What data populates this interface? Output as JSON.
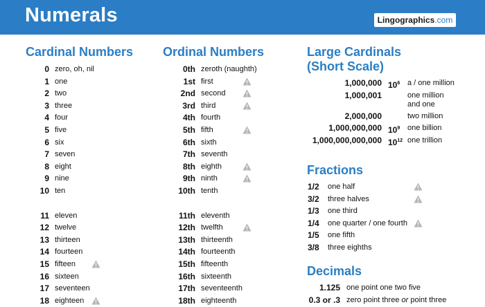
{
  "header": {
    "title": "Numerals",
    "logo_main": "Lingographics",
    "logo_dom": ".com"
  },
  "cardinal": {
    "heading": "Cardinal Numbers",
    "rows": [
      {
        "n": "0",
        "w": "zero, oh, nil"
      },
      {
        "n": "1",
        "w": "one"
      },
      {
        "n": "2",
        "w": "two"
      },
      {
        "n": "3",
        "w": "three"
      },
      {
        "n": "4",
        "w": "four"
      },
      {
        "n": "5",
        "w": "five"
      },
      {
        "n": "6",
        "w": "six"
      },
      {
        "n": "7",
        "w": "seven"
      },
      {
        "n": "8",
        "w": "eight"
      },
      {
        "n": "9",
        "w": "nine"
      },
      {
        "n": "10",
        "w": "ten"
      },
      {
        "n": "11",
        "w": "eleven"
      },
      {
        "n": "12",
        "w": "twelve"
      },
      {
        "n": "13",
        "w": "thirteen"
      },
      {
        "n": "14",
        "w": "fourteen"
      },
      {
        "n": "15",
        "w": "fifteen",
        "warn": true
      },
      {
        "n": "16",
        "w": "sixteen"
      },
      {
        "n": "17",
        "w": "seventeen"
      },
      {
        "n": "18",
        "w": "eighteen",
        "warn": true
      }
    ]
  },
  "ordinal": {
    "heading": "Ordinal Numbers",
    "rows": [
      {
        "n": "0th",
        "w": "zeroth (naughth)"
      },
      {
        "n": "1st",
        "w": "first",
        "warn": true
      },
      {
        "n": "2nd",
        "w": "second",
        "warn": true
      },
      {
        "n": "3rd",
        "w": "third",
        "warn": true
      },
      {
        "n": "4th",
        "w": "fourth"
      },
      {
        "n": "5th",
        "w": "fifth",
        "warn": true
      },
      {
        "n": "6th",
        "w": "sixth"
      },
      {
        "n": "7th",
        "w": "seventh"
      },
      {
        "n": "8th",
        "w": "eighth",
        "warn": true
      },
      {
        "n": "9th",
        "w": "ninth",
        "warn": true
      },
      {
        "n": "10th",
        "w": "tenth"
      },
      {
        "n": "11th",
        "w": "eleventh"
      },
      {
        "n": "12th",
        "w": "twelfth",
        "warn": true
      },
      {
        "n": "13th",
        "w": "thirteenth"
      },
      {
        "n": "14th",
        "w": "fourteenth"
      },
      {
        "n": "15th",
        "w": "fifteenth"
      },
      {
        "n": "16th",
        "w": "sixteenth"
      },
      {
        "n": "17th",
        "w": "seventeenth"
      },
      {
        "n": "18th",
        "w": "eighteenth"
      }
    ]
  },
  "large": {
    "heading1": "Large Cardinals",
    "heading2": "(Short Scale)",
    "rows": [
      {
        "n": "1,000,000",
        "p": "6",
        "w": "a / one million"
      },
      {
        "n": "1,000,001",
        "p": "",
        "w": "one million",
        "w2": "and one"
      },
      {
        "n": "2,000,000",
        "p": "",
        "w": "two million"
      },
      {
        "n": "1,000,000,000",
        "p": "9",
        "w": "one billion"
      },
      {
        "n": "1,000,000,000,000",
        "p": "12",
        "w": "one trillion"
      }
    ],
    "base": "10"
  },
  "fractions": {
    "heading": "Fractions",
    "rows": [
      {
        "n": "1/2",
        "w": "one half",
        "warn": true
      },
      {
        "n": "3/2",
        "w": "three halves",
        "warn": true
      },
      {
        "n": "1/3",
        "w": "one third"
      },
      {
        "n": "1/4",
        "w": "one quarter / one fourth",
        "warn": true
      },
      {
        "n": "1/5",
        "w": "one fifth"
      },
      {
        "n": "3/8",
        "w": "three eighths"
      }
    ]
  },
  "decimals": {
    "heading": "Decimals",
    "rows": [
      {
        "n": "1.125",
        "w": "one point one two five"
      },
      {
        "n": "0.3 or .3",
        "w1": "zero point three ",
        "or": "or",
        "w2": " point three"
      }
    ]
  },
  "colors": {
    "accent": "#2b7ec5",
    "warn": "#b5b5b5"
  }
}
